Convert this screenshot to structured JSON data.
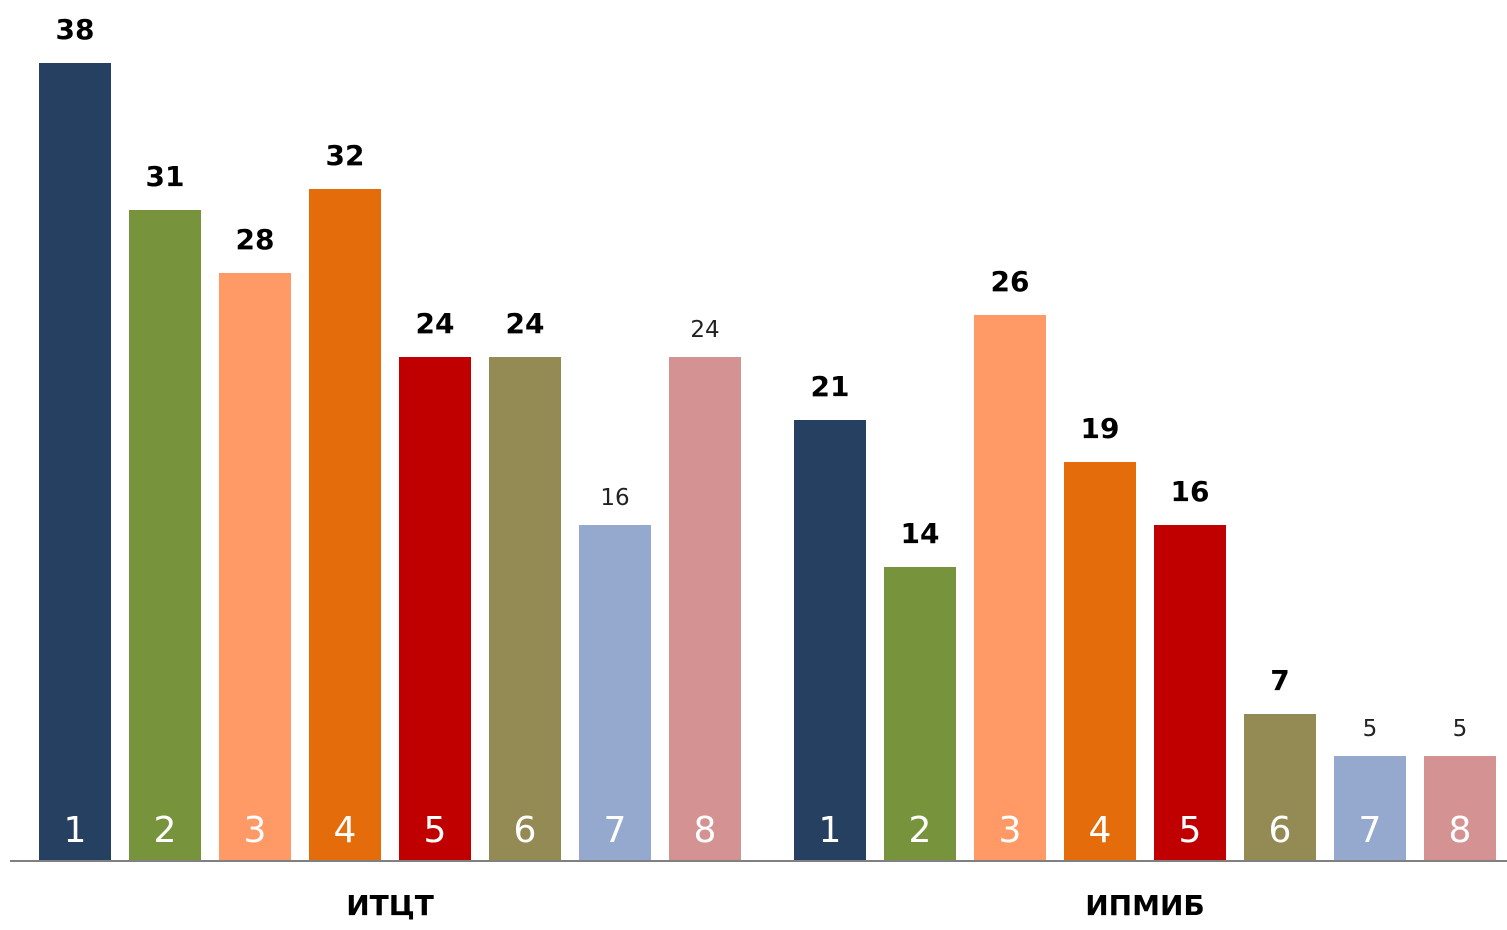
{
  "chart_data": {
    "type": "bar",
    "groups": [
      "ИТЦТ",
      "ИПМИБ"
    ],
    "bar_labels": [
      "1",
      "2",
      "3",
      "4",
      "5",
      "6",
      "7",
      "8"
    ],
    "series": [
      {
        "group": "ИТЦТ",
        "values": [
          38,
          31,
          28,
          32,
          24,
          24,
          16,
          24
        ],
        "value_styles": [
          "bold",
          "bold",
          "bold",
          "bold",
          "bold",
          "bold",
          "light",
          "light"
        ]
      },
      {
        "group": "ИПМИБ",
        "values": [
          21,
          14,
          26,
          19,
          16,
          7,
          5,
          5
        ],
        "value_styles": [
          "bold",
          "bold",
          "bold",
          "bold",
          "bold",
          "bold",
          "light",
          "light"
        ]
      }
    ],
    "colors": [
      "#264061",
      "#77933C",
      "#FF9966",
      "#E46C0A",
      "#C00000",
      "#948A54",
      "#95A9CE",
      "#D59292"
    ],
    "ylim": [
      0,
      38
    ],
    "grid": false,
    "legend": "none"
  }
}
